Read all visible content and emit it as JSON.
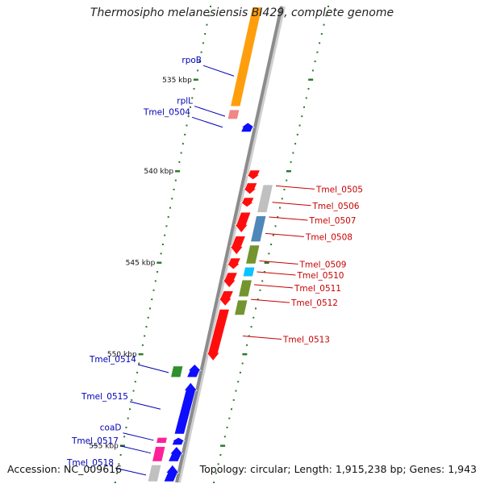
{
  "title": "Thermosipho melanesiensis BI429, complete genome",
  "footer": {
    "accession": "Accession: NC_009616",
    "summary": "Topology: circular; Length: 1,915,238 bp; Genes: 1,943"
  },
  "colors": {
    "backbone": "#8c8c8c",
    "forward_strand": "#0000ff",
    "reverse_strand": "#ff0000",
    "left_label": "#0000b4",
    "right_label": "#c80000",
    "ticks": "#2a7a2a",
    "cog_orange": "#ff9900",
    "cog_salmon": "#f08080",
    "cog_gray": "#bdbdbd",
    "cog_steelblue": "#4682b4",
    "cog_olive": "#6b8e23",
    "cog_cyan": "#00bfff",
    "cog_green": "#228b22",
    "cog_magenta": "#ff1493"
  },
  "scale": {
    "start_kbp": 531,
    "end_kbp": 557,
    "labels": [
      "535 kbp",
      "540 kbp",
      "545 kbp",
      "550 kbp",
      "555 kbp"
    ]
  },
  "genes": [
    {
      "strand": 1,
      "start_kbp": 531.0,
      "end_kbp": 536.5,
      "cog": "cog_orange"
    },
    {
      "strand": 1,
      "start_kbp": 536.6,
      "end_kbp": 537.2,
      "cog": "cog_salmon"
    },
    {
      "strand": 1,
      "start_kbp": 537.3,
      "end_kbp": 537.9,
      "cog": null
    },
    {
      "strand": -1,
      "start_kbp": 539.9,
      "end_kbp": 540.5,
      "cog": null
    },
    {
      "strand": -1,
      "start_kbp": 540.6,
      "end_kbp": 541.3,
      "cog": null
    },
    {
      "strand": -1,
      "start_kbp": 541.4,
      "end_kbp": 542.0,
      "cog": null
    },
    {
      "strand": -1,
      "start_kbp": 542.2,
      "end_kbp": 543.4,
      "cog": null
    },
    {
      "strand": -1,
      "start_kbp": 540.7,
      "end_kbp": 542.3,
      "cog": "cog_gray"
    },
    {
      "strand": -1,
      "start_kbp": 542.4,
      "end_kbp": 543.9,
      "cog": "cog_steelblue"
    },
    {
      "strand": -1,
      "start_kbp": 543.5,
      "end_kbp": 544.6,
      "cog": null
    },
    {
      "strand": -1,
      "start_kbp": 544.7,
      "end_kbp": 545.4,
      "cog": null
    },
    {
      "strand": -1,
      "start_kbp": 544.0,
      "end_kbp": 545.1,
      "cog": "cog_olive"
    },
    {
      "strand": -1,
      "start_kbp": 545.2,
      "end_kbp": 545.8,
      "cog": "cog_cyan"
    },
    {
      "strand": -1,
      "start_kbp": 545.5,
      "end_kbp": 546.4,
      "cog": null
    },
    {
      "strand": -1,
      "start_kbp": 545.9,
      "end_kbp": 546.9,
      "cog": "cog_olive"
    },
    {
      "strand": -1,
      "start_kbp": 546.5,
      "end_kbp": 547.4,
      "cog": null
    },
    {
      "strand": -1,
      "start_kbp": 547.0,
      "end_kbp": 547.9,
      "cog": "cog_olive"
    },
    {
      "strand": -1,
      "start_kbp": 547.5,
      "end_kbp": 550.4,
      "cog": null
    },
    {
      "strand": 1,
      "start_kbp": 550.5,
      "end_kbp": 551.3,
      "cog": null
    },
    {
      "strand": 1,
      "start_kbp": 550.6,
      "end_kbp": 551.3,
      "cog": "cog_green"
    },
    {
      "strand": 1,
      "start_kbp": 551.5,
      "end_kbp": 554.4,
      "cog": null
    },
    {
      "strand": 1,
      "start_kbp": 554.5,
      "end_kbp": 555.0,
      "cog": null
    },
    {
      "strand": 1,
      "start_kbp": 554.5,
      "end_kbp": 554.9,
      "cog": "cog_magenta"
    },
    {
      "strand": 1,
      "start_kbp": 555.0,
      "end_kbp": 555.9,
      "cog": null
    },
    {
      "strand": 1,
      "start_kbp": 555.0,
      "end_kbp": 555.9,
      "cog": "cog_magenta"
    },
    {
      "strand": 1,
      "start_kbp": 556.0,
      "end_kbp": 557.0,
      "cog": null
    },
    {
      "strand": 1,
      "start_kbp": 556.0,
      "end_kbp": 557.0,
      "cog": "cog_gray"
    }
  ],
  "labels": [
    {
      "text": "rpoB",
      "side": "left",
      "kbp": 534.8
    },
    {
      "text": "rplL",
      "side": "left",
      "kbp": 537.0
    },
    {
      "text": "Tmel_0504",
      "side": "left",
      "kbp": 537.6
    },
    {
      "text": "Tmel_0505",
      "side": "right",
      "kbp": 540.8
    },
    {
      "text": "Tmel_0506",
      "side": "right",
      "kbp": 541.7
    },
    {
      "text": "Tmel_0507",
      "side": "right",
      "kbp": 542.5
    },
    {
      "text": "Tmel_0508",
      "side": "right",
      "kbp": 543.4
    },
    {
      "text": "Tmel_0509",
      "side": "right",
      "kbp": 544.9
    },
    {
      "text": "Tmel_0510",
      "side": "right",
      "kbp": 545.5
    },
    {
      "text": "Tmel_0511",
      "side": "right",
      "kbp": 546.2
    },
    {
      "text": "Tmel_0512",
      "side": "right",
      "kbp": 547.0
    },
    {
      "text": "Tmel_0513",
      "side": "right",
      "kbp": 549.0
    },
    {
      "text": "Tmel_0514",
      "side": "left",
      "kbp": 551.0
    },
    {
      "text": "Tmel_0515",
      "side": "left",
      "kbp": 553.0
    },
    {
      "text": "coaD",
      "side": "left",
      "kbp": 554.7
    },
    {
      "text": "Tmel_0517",
      "side": "left",
      "kbp": 555.4
    },
    {
      "text": "Tmel_0518",
      "side": "left",
      "kbp": 556.6
    }
  ]
}
